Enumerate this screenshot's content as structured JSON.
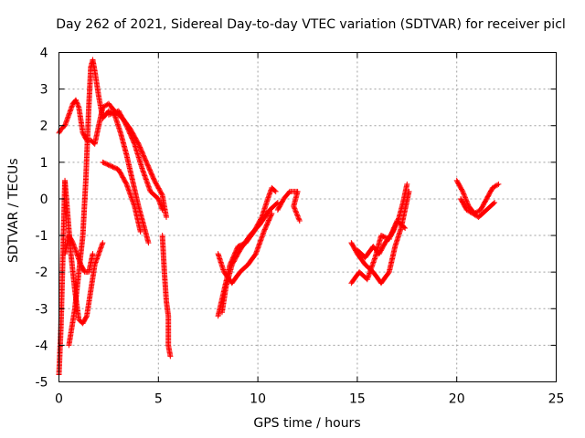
{
  "chart_data": {
    "type": "scatter",
    "title": "Day 262 of 2021, Sidereal Day-to-day VTEC variation (SDTVAR) for receiver picl",
    "xlabel": "GPS time / hours",
    "ylabel": "SDTVAR / TECUs",
    "xlim": [
      0,
      25
    ],
    "ylim": [
      -5,
      4
    ],
    "xticks": [
      0,
      5,
      10,
      15,
      20,
      25
    ],
    "yticks": [
      -5,
      -4,
      -3,
      -2,
      -1,
      0,
      1,
      2,
      3,
      4
    ],
    "grid": true,
    "marker": "+",
    "series": [
      {
        "name": "SDTVAR",
        "color": "#ff0000",
        "segments": [
          [
            [
              0.0,
              1.8
            ],
            [
              0.1,
              1.9
            ],
            [
              0.3,
              2.0
            ],
            [
              0.5,
              2.3
            ],
            [
              0.7,
              2.6
            ],
            [
              0.85,
              2.7
            ],
            [
              1.0,
              2.5
            ],
            [
              1.2,
              1.8
            ],
            [
              1.4,
              1.6
            ],
            [
              1.6,
              1.6
            ],
            [
              1.8,
              1.5
            ],
            [
              2.0,
              2.0
            ],
            [
              2.2,
              2.5
            ],
            [
              2.5,
              2.6
            ],
            [
              2.8,
              2.4
            ],
            [
              3.2,
              2.2
            ],
            [
              3.6,
              1.9
            ],
            [
              4.0,
              1.5
            ],
            [
              4.4,
              1.0
            ],
            [
              4.8,
              0.5
            ],
            [
              5.2,
              0.1
            ],
            [
              5.4,
              -0.5
            ]
          ],
          [
            [
              0.5,
              -4.0
            ],
            [
              0.8,
              -3.0
            ],
            [
              1.0,
              -2.0
            ],
            [
              1.2,
              -1.0
            ],
            [
              1.35,
              0.5
            ],
            [
              1.5,
              2.5
            ],
            [
              1.6,
              3.6
            ],
            [
              1.7,
              3.8
            ],
            [
              1.8,
              3.5
            ],
            [
              2.0,
              2.8
            ],
            [
              2.2,
              2.2
            ],
            [
              2.5,
              2.4
            ],
            [
              2.8,
              2.3
            ],
            [
              3.1,
              1.8
            ],
            [
              3.4,
              1.2
            ],
            [
              3.7,
              0.5
            ],
            [
              4.0,
              -0.2
            ],
            [
              4.3,
              -0.8
            ],
            [
              4.5,
              -1.2
            ]
          ],
          [
            [
              0.0,
              -4.8
            ],
            [
              0.1,
              -3.5
            ],
            [
              0.2,
              -1.5
            ],
            [
              0.3,
              0.5
            ],
            [
              0.45,
              -0.5
            ],
            [
              0.6,
              -1.5
            ],
            [
              0.8,
              -2.5
            ],
            [
              1.0,
              -3.3
            ],
            [
              1.2,
              -3.4
            ],
            [
              1.4,
              -3.2
            ],
            [
              1.6,
              -2.5
            ],
            [
              1.8,
              -1.8
            ],
            [
              2.0,
              -1.5
            ],
            [
              2.2,
              -1.2
            ]
          ],
          [
            [
              0.3,
              -1.5
            ],
            [
              0.5,
              -1.0
            ],
            [
              0.7,
              -1.2
            ],
            [
              0.9,
              -1.5
            ],
            [
              1.1,
              -1.8
            ],
            [
              1.3,
              -2.0
            ],
            [
              1.5,
              -2.0
            ],
            [
              1.7,
              -1.5
            ]
          ],
          [
            [
              2.2,
              1.0
            ],
            [
              2.6,
              0.9
            ],
            [
              3.0,
              0.8
            ],
            [
              3.4,
              0.4
            ],
            [
              3.8,
              -0.2
            ],
            [
              4.1,
              -0.9
            ]
          ],
          [
            [
              2.5,
              2.3
            ],
            [
              3.0,
              2.4
            ],
            [
              3.4,
              2.0
            ],
            [
              3.8,
              1.5
            ],
            [
              4.2,
              0.8
            ],
            [
              4.6,
              0.2
            ],
            [
              5.0,
              0.0
            ],
            [
              5.2,
              -0.3
            ]
          ],
          [
            [
              5.2,
              -1.0
            ],
            [
              5.3,
              -2.0
            ],
            [
              5.4,
              -2.8
            ],
            [
              5.5,
              -3.2
            ],
            [
              5.5,
              -4.0
            ],
            [
              5.6,
              -4.3
            ]
          ],
          [
            [
              8.0,
              -3.2
            ],
            [
              8.3,
              -2.5
            ],
            [
              8.6,
              -1.8
            ],
            [
              9.0,
              -1.3
            ],
            [
              9.4,
              -1.2
            ],
            [
              9.8,
              -0.9
            ],
            [
              10.2,
              -0.5
            ],
            [
              10.5,
              0.0
            ],
            [
              10.7,
              0.3
            ],
            [
              10.9,
              0.2
            ]
          ],
          [
            [
              8.0,
              -1.5
            ],
            [
              8.3,
              -2.0
            ],
            [
              8.7,
              -2.3
            ],
            [
              9.1,
              -2.0
            ],
            [
              9.5,
              -1.8
            ],
            [
              9.9,
              -1.5
            ],
            [
              10.3,
              -0.9
            ],
            [
              10.7,
              -0.4
            ]
          ],
          [
            [
              8.2,
              -3.1
            ],
            [
              8.4,
              -2.4
            ],
            [
              8.7,
              -1.8
            ],
            [
              9.1,
              -1.4
            ],
            [
              9.6,
              -1.0
            ],
            [
              10.1,
              -0.7
            ],
            [
              10.6,
              -0.3
            ],
            [
              11.0,
              -0.1
            ]
          ],
          [
            [
              11.0,
              -0.3
            ],
            [
              11.3,
              0.0
            ],
            [
              11.6,
              0.2
            ],
            [
              12.0,
              0.2
            ],
            [
              11.8,
              -0.2
            ],
            [
              12.1,
              -0.6
            ]
          ],
          [
            [
              14.7,
              -1.2
            ],
            [
              15.0,
              -1.5
            ],
            [
              15.4,
              -1.8
            ],
            [
              15.8,
              -2.0
            ],
            [
              16.2,
              -2.3
            ],
            [
              16.6,
              -2.0
            ],
            [
              16.9,
              -1.3
            ],
            [
              17.2,
              -0.8
            ],
            [
              17.4,
              -0.3
            ],
            [
              17.6,
              0.2
            ]
          ],
          [
            [
              14.7,
              -2.3
            ],
            [
              15.1,
              -2.0
            ],
            [
              15.5,
              -2.2
            ],
            [
              15.9,
              -1.6
            ],
            [
              16.2,
              -1.0
            ],
            [
              16.6,
              -1.1
            ],
            [
              17.0,
              -0.6
            ],
            [
              17.4,
              -0.8
            ]
          ],
          [
            [
              15.0,
              -1.4
            ],
            [
              15.4,
              -1.6
            ],
            [
              15.8,
              -1.3
            ],
            [
              16.1,
              -1.5
            ],
            [
              16.4,
              -1.2
            ],
            [
              16.8,
              -0.9
            ],
            [
              17.1,
              -0.5
            ],
            [
              17.3,
              -0.1
            ],
            [
              17.5,
              0.4
            ]
          ],
          [
            [
              20.0,
              0.5
            ],
            [
              20.3,
              0.2
            ],
            [
              20.6,
              -0.2
            ],
            [
              20.9,
              -0.4
            ],
            [
              21.2,
              -0.3
            ],
            [
              21.5,
              0.0
            ],
            [
              21.8,
              0.3
            ],
            [
              22.1,
              0.4
            ]
          ],
          [
            [
              20.2,
              0.0
            ],
            [
              20.5,
              -0.3
            ],
            [
              20.8,
              -0.4
            ],
            [
              21.1,
              -0.5
            ],
            [
              21.5,
              -0.3
            ],
            [
              21.9,
              -0.1
            ]
          ]
        ]
      }
    ]
  }
}
